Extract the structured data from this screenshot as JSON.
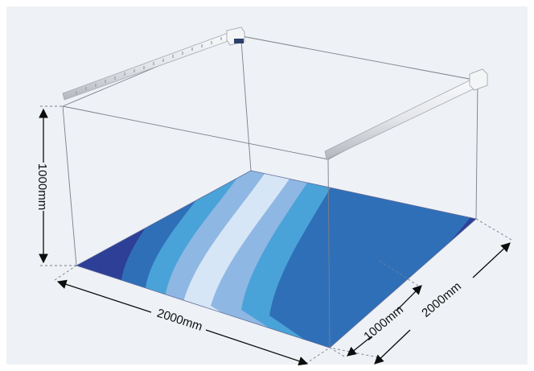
{
  "dimensions": {
    "height_label": "1000mm",
    "width_label": "2000mm",
    "depth_label": "2000mm",
    "offset_label": "1000mm"
  },
  "colors": {
    "background": "#eef1f5",
    "band_dark": "#2d3f96",
    "band_mid_dark": "#2f6fb8",
    "band_mid": "#4aa3d8",
    "band_light": "#8fb7e3",
    "band_lightest": "#d7e6f6",
    "frame_line": "#7a7f88",
    "rail_body": "#e4e6ea",
    "rail_shadow": "#b3b7bd"
  },
  "icons": {
    "rail_left": "linear-light-rail",
    "rail_right": "linear-light-rail",
    "end_cap": "rail-end-cap"
  }
}
